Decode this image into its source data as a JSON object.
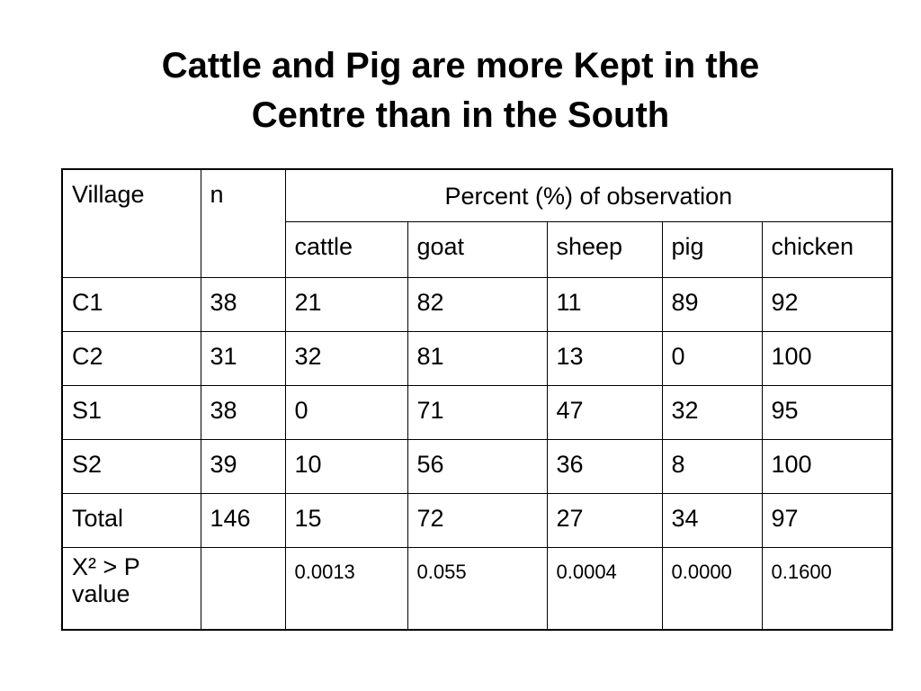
{
  "title": {
    "line1": "Cattle and Pig are more Kept in the",
    "line2": "Centre than in the South"
  },
  "table": {
    "col_village": "Village",
    "col_n": "n",
    "group_header": "Percent (%) of observation",
    "animals": [
      "cattle",
      "goat",
      "sheep",
      "pig",
      "chicken"
    ],
    "rows": [
      {
        "village": "C1",
        "n": "38",
        "values": [
          "21",
          "82",
          "11",
          "89",
          "92"
        ]
      },
      {
        "village": "C2",
        "n": "31",
        "values": [
          "32",
          "81",
          "13",
          "0",
          "100"
        ]
      },
      {
        "village": "S1",
        "n": "38",
        "values": [
          "0",
          "71",
          "47",
          "32",
          "95"
        ]
      },
      {
        "village": "S2",
        "n": "39",
        "values": [
          "10",
          "56",
          "36",
          "8",
          "100"
        ]
      },
      {
        "village": "Total",
        "n": "146",
        "values": [
          "15",
          "72",
          "27",
          "34",
          "97"
        ]
      }
    ],
    "pvalue_row": {
      "label_line1": "X² > P",
      "label_line2": "value",
      "n": "",
      "values": [
        "0.0013",
        "0.055",
        "0.0004",
        "0.0000",
        "0.1600"
      ]
    }
  }
}
